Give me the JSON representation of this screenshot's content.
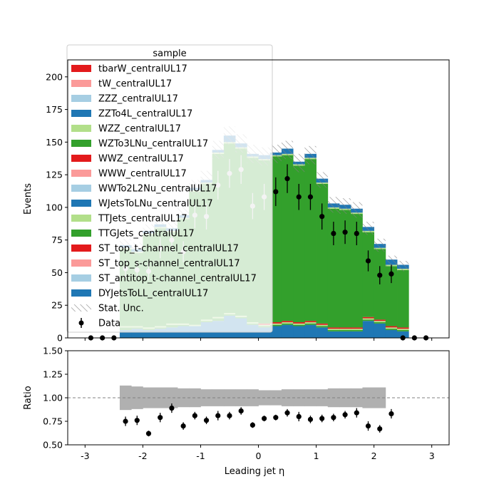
{
  "chart_data": [
    {
      "type": "bar",
      "subtype": "stacked-histogram-with-data-points",
      "xlabel": "",
      "ylabel": "Events",
      "xlim": [
        -3.3,
        3.3
      ],
      "ylim": [
        0,
        213
      ],
      "xticks": [
        -3,
        -2,
        -1,
        0,
        1,
        2,
        3
      ],
      "yticks": [
        0,
        25,
        50,
        75,
        100,
        125,
        150,
        175,
        200
      ],
      "bin_edges": [
        -3.0,
        -2.8,
        -2.6,
        -2.4,
        -2.2,
        -2.0,
        -1.8,
        -1.6,
        -1.4,
        -1.2,
        -1.0,
        -0.8,
        -0.6,
        -0.4,
        -0.2,
        0.0,
        0.2,
        0.4,
        0.6,
        0.8,
        1.0,
        1.2,
        1.4,
        1.6,
        1.8,
        2.0,
        2.2,
        2.4,
        2.6,
        2.8,
        3.0
      ],
      "stack_totals": [
        0,
        0,
        0,
        71,
        68,
        82,
        87,
        84,
        94,
        115,
        121,
        144,
        155,
        149,
        141,
        139,
        141,
        144,
        134,
        140,
        121,
        102,
        101,
        98,
        84,
        71,
        59,
        55,
        0,
        0
      ],
      "stat_unc": [
        0,
        0,
        0,
        5,
        5,
        5,
        5,
        5,
        6,
        6,
        7,
        7,
        7,
        7,
        7,
        7,
        7,
        7,
        7,
        7,
        6,
        6,
        6,
        6,
        5,
        5,
        4,
        4,
        0,
        0
      ],
      "series": [
        {
          "name": "DYJetsToLL_centralUL17",
          "color": "#1f77b4",
          "values": [
            0,
            0,
            0,
            6,
            7,
            6,
            7,
            8,
            9,
            9,
            12,
            13,
            17,
            15,
            10,
            8,
            9,
            10,
            9,
            10,
            8,
            5,
            5,
            5,
            13,
            11,
            6,
            5,
            0,
            0
          ]
        },
        {
          "name": "ST_antitop_t-channel_centralUL17",
          "color": "#a6cee3",
          "values": [
            0,
            0,
            0,
            0,
            0,
            0,
            0,
            0,
            0,
            0,
            0,
            0,
            0,
            0,
            0,
            0,
            0,
            0,
            0,
            0,
            0,
            0,
            0,
            0,
            0,
            0,
            0,
            0,
            0,
            0
          ]
        },
        {
          "name": "ST_top_s-channel_centralUL17",
          "color": "#fb9a99",
          "values": [
            0,
            0,
            0,
            0,
            0,
            0,
            0,
            0,
            0,
            0,
            0,
            0,
            0,
            0,
            0,
            0,
            0,
            0,
            0,
            0,
            0,
            0,
            0,
            0,
            0,
            0,
            0,
            0,
            0,
            0
          ]
        },
        {
          "name": "ST_top_t-channel_centralUL17",
          "color": "#e31a1c",
          "values": [
            0,
            0,
            0,
            0,
            0,
            0,
            0,
            0,
            0,
            0,
            0,
            0,
            0,
            0,
            0,
            0,
            0,
            0,
            0,
            0,
            0,
            0,
            0,
            0,
            0,
            0,
            0,
            0,
            0,
            0
          ]
        },
        {
          "name": "TTGJets_centralUL17",
          "color": "#33a02c",
          "values": [
            0,
            0,
            0,
            2,
            1,
            1,
            1,
            2,
            1,
            0,
            1,
            2,
            1,
            1,
            1,
            1,
            1,
            1,
            1,
            1,
            1,
            1,
            1,
            1,
            1,
            1,
            1,
            1,
            0,
            0
          ]
        },
        {
          "name": "TTJets_centralUL17",
          "color": "#b2df8a",
          "values": [
            0,
            0,
            0,
            1,
            1,
            1,
            1,
            1,
            1,
            1,
            1,
            1,
            1,
            1,
            1,
            1,
            1,
            1,
            1,
            1,
            1,
            1,
            1,
            1,
            1,
            1,
            1,
            1,
            0,
            0
          ]
        },
        {
          "name": "WJetsToLNu_centralUL17",
          "color": "#1f77b4",
          "values": [
            0,
            0,
            0,
            0,
            0,
            0,
            0,
            0,
            0,
            0,
            0,
            0,
            0,
            0,
            0,
            0,
            0,
            0,
            0,
            0,
            0,
            0,
            0,
            0,
            0,
            0,
            0,
            0,
            0,
            0
          ]
        },
        {
          "name": "WWTo2L2Nu_centralUL17",
          "color": "#a6cee3",
          "values": [
            0,
            0,
            0,
            0,
            0,
            0,
            0,
            0,
            0,
            0,
            0,
            0,
            0,
            0,
            0,
            0,
            0,
            0,
            0,
            0,
            0,
            0,
            0,
            0,
            0,
            0,
            0,
            0,
            0,
            0
          ]
        },
        {
          "name": "WWW_centralUL17",
          "color": "#fb9a99",
          "values": [
            0,
            0,
            0,
            0,
            0,
            0,
            0,
            0,
            0,
            0,
            0,
            0,
            0,
            0,
            0,
            0,
            0,
            0,
            0,
            0,
            0,
            0,
            0,
            0,
            0,
            0,
            0,
            0,
            0,
            0
          ]
        },
        {
          "name": "WWZ_centralUL17",
          "color": "#e31a1c",
          "values": [
            0,
            0,
            0,
            0,
            0,
            0,
            0,
            0,
            0,
            0,
            0,
            0,
            0,
            0,
            0,
            1,
            1,
            1,
            1,
            1,
            1,
            1,
            1,
            1,
            1,
            1,
            1,
            1,
            0,
            0
          ]
        },
        {
          "name": "WZTo3LNu_centralUL17",
          "color": "#33a02c",
          "values": [
            0,
            0,
            0,
            59,
            56,
            71,
            75,
            70,
            80,
            102,
            104,
            125,
            130,
            128,
            126,
            125,
            127,
            127,
            120,
            124,
            107,
            91,
            90,
            87,
            65,
            54,
            46,
            44,
            0,
            0
          ]
        },
        {
          "name": "WZZ_centralUL17",
          "color": "#b2df8a",
          "values": [
            0,
            0,
            0,
            1,
            1,
            1,
            1,
            1,
            1,
            1,
            1,
            1,
            1,
            1,
            1,
            1,
            1,
            1,
            1,
            1,
            1,
            1,
            1,
            1,
            1,
            1,
            1,
            1,
            0,
            0
          ]
        },
        {
          "name": "ZZTo4L_centralUL17",
          "color": "#1f77b4",
          "values": [
            0,
            0,
            0,
            2,
            2,
            2,
            2,
            2,
            2,
            2,
            2,
            2,
            5,
            3,
            2,
            3,
            2,
            4,
            2,
            3,
            3,
            3,
            3,
            3,
            3,
            3,
            4,
            3,
            0,
            0
          ]
        },
        {
          "name": "ZZZ_centralUL17",
          "color": "#a6cee3",
          "values": [
            0,
            0,
            0,
            0,
            0,
            0,
            0,
            0,
            0,
            0,
            0,
            0,
            0,
            0,
            0,
            0,
            0,
            0,
            0,
            0,
            0,
            0,
            0,
            0,
            0,
            0,
            0,
            0,
            0,
            0
          ]
        },
        {
          "name": "tW_centralUL17",
          "color": "#fb9a99",
          "values": [
            0,
            0,
            0,
            0,
            0,
            0,
            0,
            0,
            0,
            0,
            0,
            0,
            0,
            0,
            0,
            0,
            0,
            0,
            0,
            0,
            0,
            0,
            0,
            0,
            0,
            0,
            0,
            0,
            0,
            0
          ]
        },
        {
          "name": "tbarW_centralUL17",
          "color": "#e31a1c",
          "values": [
            0,
            0,
            0,
            0,
            0,
            0,
            0,
            0,
            0,
            0,
            0,
            0,
            0,
            0,
            0,
            0,
            0,
            0,
            0,
            0,
            0,
            0,
            0,
            0,
            0,
            0,
            0,
            0,
            0,
            0
          ]
        }
      ],
      "data": {
        "name": "Data",
        "x": [
          -2.9,
          -2.7,
          -2.5,
          -2.3,
          -2.1,
          -1.9,
          -1.7,
          -1.5,
          -1.3,
          -1.1,
          -0.9,
          -0.7,
          -0.5,
          -0.3,
          -0.1,
          0.1,
          0.3,
          0.5,
          0.7,
          0.9,
          1.1,
          1.3,
          1.5,
          1.7,
          1.9,
          2.1,
          2.3,
          2.5,
          2.7,
          2.9
        ],
        "y": [
          0,
          0,
          0,
          53,
          52,
          51,
          69,
          75,
          66,
          94,
          93,
          117,
          126,
          129,
          101,
          108,
          112,
          122,
          108,
          108,
          93,
          80,
          81,
          80,
          59,
          48,
          49,
          0,
          0,
          0
        ],
        "yerr": [
          0,
          0,
          0,
          7,
          7,
          7,
          8,
          9,
          8,
          10,
          10,
          11,
          11,
          11,
          10,
          10,
          11,
          11,
          10,
          10,
          10,
          9,
          9,
          9,
          8,
          7,
          7,
          0,
          0,
          0
        ],
        "color": "#000000",
        "hidden_under_legend_color": "#c8c8c8"
      },
      "legend": {
        "title": "sample",
        "placement": "upper-left",
        "entries": [
          {
            "label": "tbarW_centralUL17",
            "swatch": "#e31a1c",
            "kind": "patch"
          },
          {
            "label": "tW_centralUL17",
            "swatch": "#fb9a99",
            "kind": "patch"
          },
          {
            "label": "ZZZ_centralUL17",
            "swatch": "#a6cee3",
            "kind": "patch"
          },
          {
            "label": "ZZTo4L_centralUL17",
            "swatch": "#1f77b4",
            "kind": "patch"
          },
          {
            "label": "WZZ_centralUL17",
            "swatch": "#b2df8a",
            "kind": "patch"
          },
          {
            "label": "WZTo3LNu_centralUL17",
            "swatch": "#33a02c",
            "kind": "patch"
          },
          {
            "label": "WWZ_centralUL17",
            "swatch": "#e31a1c",
            "kind": "patch"
          },
          {
            "label": "WWW_centralUL17",
            "swatch": "#fb9a99",
            "kind": "patch"
          },
          {
            "label": "WWTo2L2Nu_centralUL17",
            "swatch": "#a6cee3",
            "kind": "patch"
          },
          {
            "label": "WJetsToLNu_centralUL17",
            "swatch": "#1f77b4",
            "kind": "patch"
          },
          {
            "label": "TTJets_centralUL17",
            "swatch": "#b2df8a",
            "kind": "patch"
          },
          {
            "label": "TTGJets_centralUL17",
            "swatch": "#33a02c",
            "kind": "patch"
          },
          {
            "label": "ST_top_t-channel_centralUL17",
            "swatch": "#e31a1c",
            "kind": "patch"
          },
          {
            "label": "ST_top_s-channel_centralUL17",
            "swatch": "#fb9a99",
            "kind": "patch"
          },
          {
            "label": "ST_antitop_t-channel_centralUL17",
            "swatch": "#a6cee3",
            "kind": "patch"
          },
          {
            "label": "DYJetsToLL_centralUL17",
            "swatch": "#1f77b4",
            "kind": "patch"
          },
          {
            "label": "Stat. Unc.",
            "swatch": "#808080",
            "kind": "hatch"
          },
          {
            "label": "Data",
            "swatch": "#000000",
            "kind": "errorbar"
          }
        ]
      }
    },
    {
      "type": "scatter",
      "subtype": "ratio-panel",
      "xlabel": "Leading jet  η",
      "ylabel": "Ratio",
      "xlim": [
        -3.3,
        3.3
      ],
      "ylim": [
        0.5,
        1.5
      ],
      "xticks": [
        -3,
        -2,
        -1,
        0,
        1,
        2,
        3
      ],
      "yticks": [
        0.5,
        0.75,
        1.0,
        1.25,
        1.5
      ],
      "ytick_labels": [
        "0.50",
        "0.75",
        "1.00",
        "1.25",
        "1.50"
      ],
      "reference_line": 1.0,
      "unc_band": {
        "x_range": [
          -2.4,
          2.2
        ],
        "low": [
          0.87,
          0.88,
          0.89,
          0.89,
          0.89,
          0.9,
          0.9,
          0.91,
          0.91,
          0.91,
          0.91,
          0.91,
          0.92,
          0.92,
          0.91,
          0.91,
          0.91,
          0.91,
          0.9,
          0.9,
          0.9,
          0.89,
          0.89
        ],
        "high": [
          1.13,
          1.12,
          1.11,
          1.11,
          1.11,
          1.1,
          1.1,
          1.09,
          1.09,
          1.09,
          1.09,
          1.09,
          1.08,
          1.08,
          1.09,
          1.09,
          1.09,
          1.09,
          1.1,
          1.1,
          1.1,
          1.11,
          1.11
        ],
        "color": "#b0b0b0"
      },
      "points": {
        "x": [
          -2.3,
          -2.1,
          -1.9,
          -1.7,
          -1.5,
          -1.3,
          -1.1,
          -0.9,
          -0.7,
          -0.5,
          -0.3,
          -0.1,
          0.1,
          0.3,
          0.5,
          0.7,
          0.9,
          1.1,
          1.3,
          1.5,
          1.7,
          1.9,
          2.1,
          2.3
        ],
        "y": [
          0.75,
          0.76,
          0.62,
          0.79,
          0.89,
          0.7,
          0.81,
          0.76,
          0.81,
          0.81,
          0.86,
          0.71,
          0.78,
          0.79,
          0.84,
          0.8,
          0.77,
          0.78,
          0.79,
          0.82,
          0.84,
          0.7,
          0.67,
          0.83
        ],
        "yerr": [
          0.05,
          0.05,
          0.03,
          0.05,
          0.05,
          0.04,
          0.04,
          0.04,
          0.05,
          0.04,
          0.04,
          0.03,
          0.03,
          0.03,
          0.04,
          0.05,
          0.04,
          0.04,
          0.04,
          0.04,
          0.05,
          0.05,
          0.04,
          0.05
        ]
      }
    }
  ]
}
